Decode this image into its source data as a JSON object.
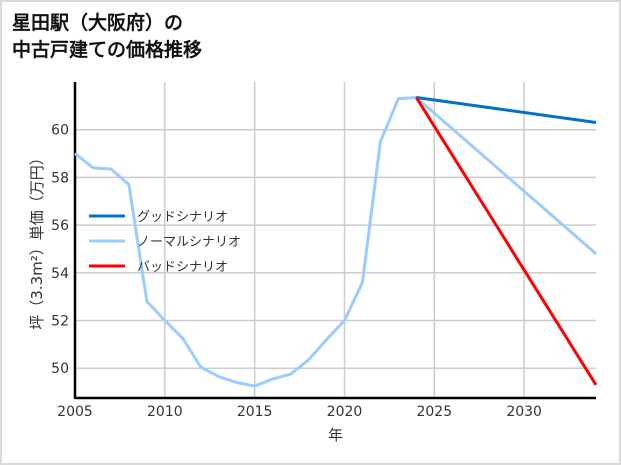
{
  "chart_data": {
    "type": "line",
    "title_lines": [
      "星田駅（大阪府）の",
      "中古戸建ての価格推移"
    ],
    "xlabel": "年",
    "ylabel": "坪（3.3m²）単価（万円）",
    "xlim": [
      2005,
      2034
    ],
    "ylim": [
      48.75,
      62
    ],
    "xticks": [
      2005,
      2010,
      2015,
      2020,
      2025,
      2030
    ],
    "yticks": [
      50,
      52,
      54,
      56,
      58,
      60
    ],
    "grid": true,
    "legend_position": "center-left",
    "series": [
      {
        "name": "グッドシナリオ",
        "color": "#0070c8",
        "x": [
          2024,
          2034
        ],
        "y": [
          61.35,
          60.3
        ]
      },
      {
        "name": "ノーマルシナリオ",
        "color": "#99ccff",
        "x": [
          2005,
          2006,
          2007,
          2008,
          2009,
          2010,
          2011,
          2012,
          2013,
          2014,
          2015,
          2016,
          2017,
          2018,
          2019,
          2020,
          2021,
          2022,
          2023,
          2024,
          2034
        ],
        "y": [
          59.0,
          58.4,
          58.35,
          57.7,
          52.8,
          52.0,
          51.25,
          50.05,
          49.65,
          49.4,
          49.25,
          49.55,
          49.75,
          50.35,
          51.2,
          52.0,
          53.6,
          59.5,
          61.3,
          61.35,
          54.8
        ]
      },
      {
        "name": "バッドシナリオ",
        "color": "#ff0000",
        "x": [
          2024,
          2034
        ],
        "y": [
          61.35,
          49.3
        ]
      }
    ]
  }
}
